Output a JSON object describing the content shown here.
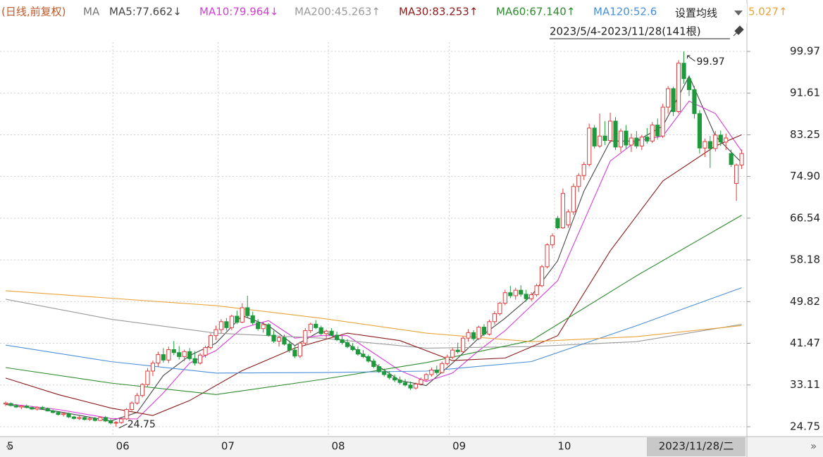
{
  "chart_data": {
    "type": "candlestick",
    "title": "(日线,前复权)",
    "ma_prefix": "MA",
    "menu_label": "设置均线",
    "range_label": "2023/5/4-2023/11/28(141根)",
    "cursor_label": "2023/11/28/二",
    "max_label": "99.97",
    "min_label": "24.75",
    "up_color": "#e03c3c",
    "down_color": "#1e9a3c",
    "ylim": [
      22.77,
      101.8
    ],
    "yticks": [
      24.75,
      33.11,
      41.47,
      49.82,
      58.18,
      66.54,
      {
        "value": 74.9,
        "label": "74.90"
      },
      83.25,
      91.61,
      99.97
    ],
    "xlim": [
      -0.6,
      140.6
    ],
    "xticks": [
      {
        "value": 0,
        "label": "5"
      },
      {
        "value": 22,
        "label": "06"
      },
      {
        "value": 42,
        "label": "07"
      },
      {
        "value": 63,
        "label": "08"
      },
      {
        "value": 86,
        "label": "09"
      },
      {
        "value": 106,
        "label": "10"
      }
    ],
    "grid": true,
    "candles": [
      [
        29.3,
        29.8,
        28.9,
        29.5
      ],
      [
        29.4,
        29.6,
        28.8,
        29.0
      ],
      [
        29.0,
        29.3,
        28.5,
        28.7
      ],
      [
        28.7,
        29.0,
        28.3,
        28.9
      ],
      [
        28.9,
        29.2,
        28.4,
        28.6
      ],
      [
        28.6,
        28.9,
        28.1,
        28.3
      ],
      [
        28.3,
        28.8,
        28.0,
        28.6
      ],
      [
        28.6,
        28.9,
        28.2,
        28.4
      ],
      [
        28.4,
        28.6,
        27.8,
        27.9
      ],
      [
        27.9,
        28.2,
        27.4,
        27.6
      ],
      [
        27.6,
        27.9,
        27.0,
        27.2
      ],
      [
        27.2,
        27.6,
        26.8,
        27.4
      ],
      [
        27.4,
        27.6,
        26.5,
        26.7
      ],
      [
        26.7,
        27.0,
        26.2,
        26.4
      ],
      [
        26.4,
        26.9,
        26.1,
        26.6
      ],
      [
        26.6,
        26.8,
        26.0,
        26.2
      ],
      [
        26.2,
        26.6,
        25.9,
        26.4
      ],
      [
        26.4,
        26.7,
        25.8,
        26.0
      ],
      [
        26.0,
        26.8,
        25.9,
        26.6
      ],
      [
        26.6,
        26.9,
        25.7,
        25.9
      ],
      [
        25.9,
        26.3,
        25.2,
        25.5
      ],
      [
        25.5,
        25.9,
        24.75,
        25.6
      ],
      [
        25.6,
        26.5,
        25.3,
        26.3
      ],
      [
        26.3,
        28.5,
        26.1,
        28.2
      ],
      [
        28.2,
        29.8,
        27.9,
        29.5
      ],
      [
        29.5,
        31.5,
        29.2,
        31.0
      ],
      [
        31.0,
        33.5,
        30.6,
        33.2
      ],
      [
        33.2,
        36.5,
        32.8,
        35.9
      ],
      [
        35.9,
        38.0,
        34.9,
        37.5
      ],
      [
        37.5,
        39.8,
        36.8,
        39.2
      ],
      [
        39.2,
        40.5,
        37.6,
        38.1
      ],
      [
        38.1,
        40.8,
        37.5,
        40.2
      ],
      [
        40.2,
        41.9,
        39.1,
        39.6
      ],
      [
        39.6,
        40.9,
        38.2,
        38.8
      ],
      [
        38.8,
        40.2,
        37.9,
        39.8
      ],
      [
        39.8,
        40.5,
        38.0,
        38.4
      ],
      [
        38.4,
        39.9,
        37.0,
        37.5
      ],
      [
        37.5,
        39.5,
        37.2,
        39.1
      ],
      [
        39.1,
        41.0,
        38.6,
        40.6
      ],
      [
        40.6,
        43.5,
        40.2,
        43.0
      ],
      [
        43.0,
        45.0,
        42.1,
        44.2
      ],
      [
        44.2,
        46.3,
        43.5,
        45.8
      ],
      [
        45.8,
        46.5,
        44.0,
        44.6
      ],
      [
        44.6,
        47.2,
        44.1,
        46.9
      ],
      [
        46.9,
        48.0,
        45.3,
        45.7
      ],
      [
        45.7,
        49.5,
        45.5,
        48.6
      ],
      [
        48.6,
        51.0,
        46.5,
        47.0
      ],
      [
        47.0,
        47.8,
        45.2,
        45.6
      ],
      [
        45.6,
        46.3,
        44.0,
        44.4
      ],
      [
        44.4,
        45.8,
        43.6,
        45.2
      ],
      [
        45.2,
        45.5,
        42.8,
        43.1
      ],
      [
        43.1,
        44.0,
        41.5,
        41.9
      ],
      [
        41.9,
        43.0,
        40.8,
        42.6
      ],
      [
        42.6,
        43.2,
        41.0,
        41.3
      ],
      [
        41.3,
        42.0,
        39.6,
        40.1
      ],
      [
        40.1,
        40.9,
        38.5,
        38.9
      ],
      [
        38.9,
        41.8,
        38.5,
        41.5
      ],
      [
        41.5,
        44.5,
        41.2,
        44.0
      ],
      [
        44.0,
        45.6,
        43.5,
        45.3
      ],
      [
        45.3,
        46.1,
        44.3,
        44.6
      ],
      [
        44.6,
        45.0,
        43.0,
        43.4
      ],
      [
        43.4,
        44.2,
        42.5,
        43.9
      ],
      [
        43.9,
        44.5,
        42.9,
        43.1
      ],
      [
        43.1,
        43.8,
        41.9,
        42.2
      ],
      [
        42.2,
        42.9,
        41.2,
        41.6
      ],
      [
        41.6,
        42.3,
        40.5,
        40.8
      ],
      [
        40.8,
        41.5,
        39.9,
        40.2
      ],
      [
        40.2,
        40.8,
        39.0,
        39.3
      ],
      [
        39.3,
        40.1,
        38.5,
        38.8
      ],
      [
        38.8,
        39.2,
        37.6,
        37.9
      ],
      [
        37.9,
        38.4,
        36.5,
        36.8
      ],
      [
        36.8,
        37.3,
        35.5,
        35.8
      ],
      [
        35.8,
        36.4,
        34.8,
        35.2
      ],
      [
        35.2,
        35.9,
        34.2,
        34.6
      ],
      [
        34.6,
        35.2,
        33.7,
        34.1
      ],
      [
        34.1,
        34.8,
        33.2,
        33.6
      ],
      [
        33.6,
        34.3,
        32.8,
        33.1
      ],
      [
        33.1,
        33.8,
        32.1,
        32.5
      ],
      [
        32.5,
        33.6,
        32.2,
        33.3
      ],
      [
        33.3,
        34.6,
        33.0,
        34.2
      ],
      [
        34.2,
        35.5,
        33.9,
        35.2
      ],
      [
        35.2,
        36.6,
        34.8,
        36.1
      ],
      [
        36.1,
        37.0,
        35.1,
        35.6
      ],
      [
        35.6,
        37.8,
        35.4,
        37.4
      ],
      [
        37.4,
        39.2,
        37.0,
        38.7
      ],
      [
        38.7,
        40.5,
        38.3,
        40.1
      ],
      [
        40.1,
        41.6,
        39.4,
        39.8
      ],
      [
        39.8,
        42.9,
        39.6,
        42.5
      ],
      [
        42.5,
        44.3,
        41.8,
        43.6
      ],
      [
        43.6,
        44.1,
        42.0,
        42.4
      ],
      [
        42.4,
        45.0,
        42.1,
        44.7
      ],
      [
        44.7,
        45.3,
        42.9,
        43.3
      ],
      [
        43.3,
        46.2,
        43.0,
        45.8
      ],
      [
        45.8,
        47.9,
        45.2,
        47.4
      ],
      [
        47.4,
        49.8,
        47.0,
        49.5
      ],
      [
        49.5,
        52.2,
        49.1,
        51.6
      ],
      [
        51.6,
        53.0,
        50.5,
        51.0
      ],
      [
        51.0,
        52.6,
        50.2,
        52.1
      ],
      [
        52.1,
        53.1,
        50.8,
        51.3
      ],
      [
        51.3,
        52.2,
        49.8,
        50.4
      ],
      [
        50.4,
        51.7,
        49.9,
        51.2
      ],
      [
        51.2,
        53.4,
        50.8,
        53.0
      ],
      [
        53.0,
        57.2,
        52.7,
        56.8
      ],
      [
        56.8,
        61.5,
        56.5,
        61.2
      ],
      [
        61.2,
        63.5,
        60.5,
        63.0
      ],
      [
        66.5,
        67.0,
        64.3,
        64.6
      ],
      [
        64.6,
        72.5,
        64.4,
        71.5
      ],
      [
        65.2,
        68.3,
        64.6,
        67.8
      ],
      [
        67.8,
        73.5,
        67.2,
        72.9
      ],
      [
        72.9,
        75.6,
        71.8,
        75.1
      ],
      [
        75.1,
        77.8,
        74.2,
        77.3
      ],
      [
        77.3,
        85.5,
        76.9,
        84.6
      ],
      [
        84.6,
        85.2,
        80.5,
        81.0
      ],
      [
        81.0,
        87.5,
        80.6,
        83.0
      ],
      [
        83.0,
        86.0,
        81.2,
        82.1
      ],
      [
        82.1,
        87.7,
        81.6,
        86.0
      ],
      [
        86.0,
        86.8,
        80.2,
        80.8
      ],
      [
        80.8,
        84.5,
        79.8,
        84.0
      ],
      [
        84.0,
        85.2,
        80.5,
        81.2
      ],
      [
        81.2,
        83.5,
        79.8,
        82.6
      ],
      [
        82.6,
        84.0,
        80.5,
        81.0
      ],
      [
        81.0,
        83.2,
        80.2,
        82.8
      ],
      [
        82.8,
        84.6,
        81.5,
        82.0
      ],
      [
        82.0,
        85.8,
        81.6,
        85.2
      ],
      [
        85.2,
        86.5,
        82.3,
        83.0
      ],
      [
        83.0,
        89.5,
        82.6,
        88.8
      ],
      [
        88.8,
        93.0,
        87.5,
        92.5
      ],
      [
        92.5,
        92.9,
        87.0,
        87.9
      ],
      [
        87.9,
        98.2,
        87.5,
        97.6
      ],
      [
        97.6,
        99.97,
        93.5,
        94.5
      ],
      [
        94.5,
        95.2,
        91.0,
        92.3
      ],
      [
        92.3,
        93.0,
        86.5,
        87.5
      ],
      [
        87.5,
        88.2,
        79.5,
        80.6
      ],
      [
        80.6,
        82.5,
        78.8,
        81.9
      ],
      [
        81.9,
        83.0,
        76.6,
        80.5
      ],
      [
        80.5,
        84.0,
        79.9,
        83.2
      ],
      [
        83.2,
        84.1,
        81.0,
        81.8
      ],
      [
        81.8,
        83.5,
        80.2,
        82.6
      ],
      [
        79.5,
        80.3,
        76.8,
        77.3
      ],
      [
        73.5,
        77.5,
        70.0,
        77.2
      ],
      [
        77.2,
        80.3,
        76.4,
        79.5
      ]
    ],
    "series": [
      {
        "name": "MA5:77.662↓",
        "color": "#444444",
        "x": [
          0,
          10,
          20,
          25,
          30,
          35,
          40,
          45,
          50,
          55,
          60,
          65,
          70,
          75,
          80,
          85,
          90,
          95,
          100,
          105,
          110,
          115,
          120,
          125,
          130,
          135,
          140
        ],
        "values": [
          29.2,
          27.8,
          25.9,
          27.6,
          35,
          39,
          41.5,
          47,
          45,
          41,
          44,
          41.5,
          37.5,
          34,
          33,
          37.5,
          42.5,
          46.5,
          51,
          58,
          72,
          82,
          82,
          85,
          95,
          83,
          77.662
        ]
      },
      {
        "name": "MA10:79.964↓",
        "color": "#d63bd6",
        "x": [
          0,
          10,
          20,
          25,
          30,
          35,
          40,
          45,
          50,
          55,
          60,
          65,
          70,
          75,
          80,
          85,
          90,
          95,
          100,
          105,
          110,
          115,
          120,
          125,
          130,
          135,
          140
        ],
        "values": [
          29.4,
          28.2,
          26.4,
          26.3,
          31.5,
          37.5,
          40,
          44.5,
          46,
          42.5,
          43,
          43,
          39.5,
          36,
          33.8,
          35.5,
          40,
          44,
          49,
          54,
          66,
          78,
          82,
          83,
          90,
          87.5,
          79.964
        ]
      },
      {
        "name": "MA200:45.263↑",
        "color": "#9a9a9a",
        "x": [
          0,
          20,
          40,
          60,
          80,
          100,
          120,
          140
        ],
        "values": [
          50.3,
          46.3,
          43.5,
          42.5,
          40.5,
          40.8,
          41.8,
          45.263
        ]
      },
      {
        "name": "MA30:83.253↑",
        "color": "#8b1a1a",
        "x": [
          0,
          10,
          20,
          28,
          35,
          45,
          55,
          65,
          75,
          85,
          95,
          105,
          115,
          125,
          135,
          140
        ],
        "values": [
          34.5,
          31.2,
          28.5,
          27,
          30,
          36,
          40.5,
          43.5,
          42,
          38,
          38.5,
          43,
          60,
          74,
          81,
          83.253
        ]
      },
      {
        "name": "MA60:67.140↑",
        "color": "#2e8b2e",
        "x": [
          0,
          20,
          40,
          60,
          80,
          100,
          120,
          140
        ],
        "values": [
          36.6,
          33.5,
          31.2,
          34.2,
          37.6,
          42,
          55,
          67.14
        ]
      },
      {
        "name": "MA120:52.6",
        "color": "#4a8fd9",
        "x": [
          0,
          20,
          40,
          60,
          80,
          100,
          120,
          140
        ],
        "values": [
          41.1,
          37.8,
          35.5,
          35.6,
          35.9,
          37.8,
          45,
          52.6
        ]
      },
      {
        "name": "5.027↑",
        "color": "#e8a33b",
        "x": [
          0,
          20,
          40,
          60,
          80,
          100,
          120,
          140
        ],
        "values": [
          52,
          50.5,
          49,
          46.5,
          43.5,
          41.8,
          42.8,
          45.027
        ]
      }
    ]
  }
}
